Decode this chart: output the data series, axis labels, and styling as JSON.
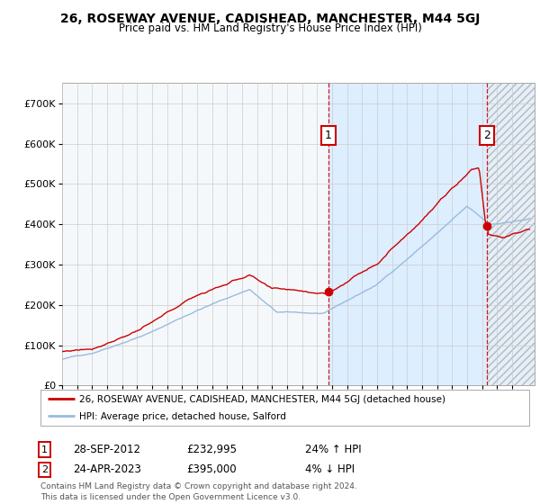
{
  "title": "26, ROSEWAY AVENUE, CADISHEAD, MANCHESTER, M44 5GJ",
  "subtitle": "Price paid vs. HM Land Registry's House Price Index (HPI)",
  "legend_line1": "26, ROSEWAY AVENUE, CADISHEAD, MANCHESTER, M44 5GJ (detached house)",
  "legend_line2": "HPI: Average price, detached house, Salford",
  "t1_label": "1",
  "t1_date": "28-SEP-2012",
  "t1_price": "£232,995",
  "t1_hpi": "24% ↑ HPI",
  "t1_x": 2012.75,
  "t1_y": 232995,
  "t2_label": "2",
  "t2_date": "24-APR-2023",
  "t2_price": "£395,000",
  "t2_hpi": "4% ↓ HPI",
  "t2_x": 2023.31,
  "t2_y": 395000,
  "red_color": "#cc0000",
  "blue_color": "#99bbdd",
  "shade_color": "#ddeeff",
  "hatch_bg": "#e8eef4",
  "grid_color": "#cccccc",
  "bg_color": "#f5f8fb",
  "footer": "Contains HM Land Registry data © Crown copyright and database right 2024.\nThis data is licensed under the Open Government Licence v3.0.",
  "xmin": 1995,
  "xmax": 2026.5,
  "ymin": 0,
  "ymax": 750000,
  "yticks": [
    0,
    100000,
    200000,
    300000,
    400000,
    500000,
    600000,
    700000
  ],
  "ylabels": [
    "£0",
    "£100K",
    "£200K",
    "£300K",
    "£400K",
    "£500K",
    "£600K",
    "£700K"
  ]
}
